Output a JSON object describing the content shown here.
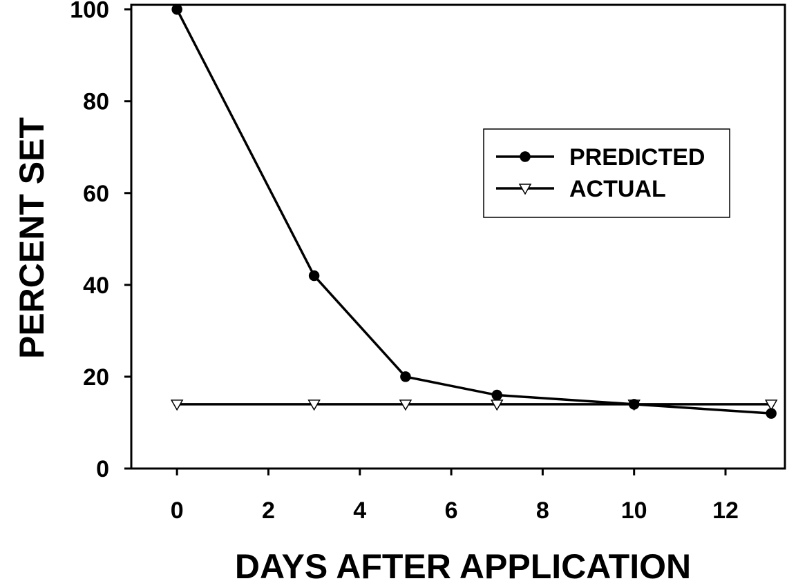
{
  "chart_data": {
    "type": "line",
    "xlabel": "DAYS AFTER APPLICATION",
    "ylabel": "PERCENT SET",
    "xlim": [
      -1,
      13.3
    ],
    "ylim": [
      0,
      101
    ],
    "xticks": [
      0,
      2,
      4,
      6,
      8,
      10,
      12
    ],
    "yticks": [
      0,
      20,
      40,
      60,
      80,
      100
    ],
    "grid": false,
    "legend_position": "top-right",
    "series": [
      {
        "name": "PREDICTED",
        "marker": "filled-circle",
        "color": "#000000",
        "x": [
          0,
          3,
          5,
          7,
          10,
          13
        ],
        "y": [
          100,
          42,
          20,
          16,
          14,
          12
        ]
      },
      {
        "name": "ACTUAL",
        "marker": "open-triangle-down",
        "color": "#000000",
        "x": [
          0,
          3,
          5,
          7,
          10,
          13
        ],
        "y": [
          14,
          14,
          14,
          14,
          14,
          14
        ]
      }
    ]
  }
}
